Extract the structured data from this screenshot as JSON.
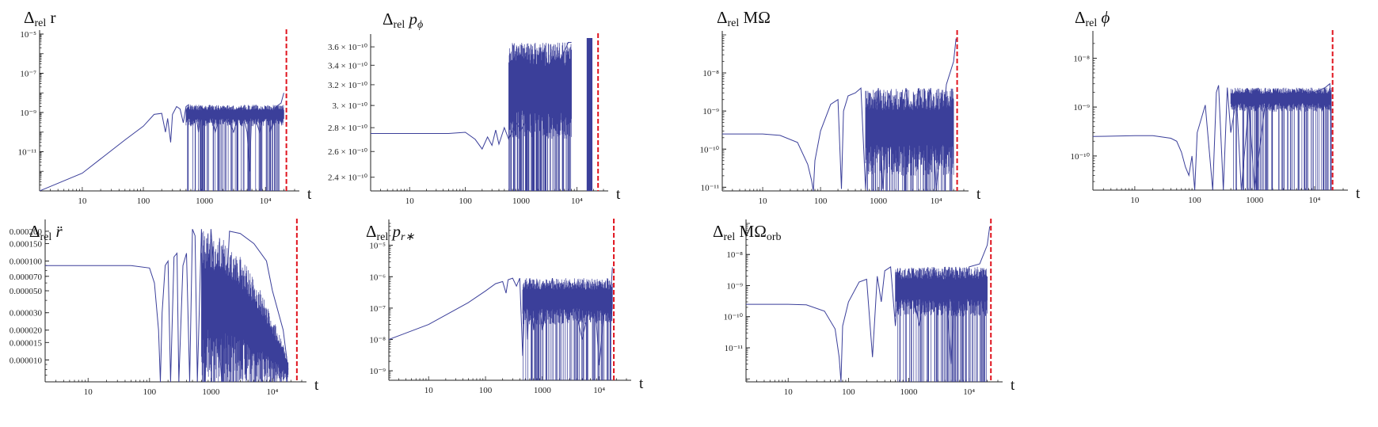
{
  "chart_data": [
    {
      "type": "line",
      "title": "Δrel r",
      "title_parts": {
        "delta": "Δ",
        "sub": "rel",
        "var": "r",
        "var_italic": false,
        "var_sub": ""
      },
      "xlabel": "t",
      "xscale": "log",
      "yscale": "log",
      "xlim": [
        2,
        30000
      ],
      "ylim": [
        1e-13,
        1e-05
      ],
      "xticks": [
        {
          "v": 10,
          "label": "10"
        },
        {
          "v": 100,
          "label": "100"
        },
        {
          "v": 1000,
          "label": "1000"
        },
        {
          "v": 10000,
          "label": "10⁴"
        }
      ],
      "yticks": [
        {
          "v": 1e-05,
          "label": "10⁻⁵"
        },
        {
          "v": 1e-07,
          "label": "10⁻⁷"
        },
        {
          "v": 1e-09,
          "label": "10⁻⁹"
        },
        {
          "v": 1e-11,
          "label": "10⁻¹¹"
        }
      ],
      "vline_t": 22000,
      "series": [
        {
          "color": "#3b3f9a",
          "x": [
            2,
            10,
            50,
            100,
            150,
            200,
            230,
            250,
            280,
            300,
            350,
            400,
            450,
            500,
            550,
            600,
            700,
            800,
            900,
            1000,
            1200,
            1500,
            2000,
            3000,
            4000,
            5000,
            5500,
            6000,
            8000,
            10000,
            12000,
            15000,
            18000,
            20000
          ],
          "y": [
            1e-13,
            8e-13,
            4e-11,
            2e-10,
            8e-10,
            9e-10,
            1e-10,
            5e-10,
            3e-11,
            8e-10,
            2e-09,
            1.5e-09,
            3e-10,
            2e-09,
            2.5e-09,
            2e-10,
            2e-09,
            1e-10,
            2e-09,
            3e-10,
            2e-09,
            1e-10,
            2e-09,
            1e-10,
            2e-09,
            1e-10,
            1e-12,
            2e-09,
            1e-10,
            2e-09,
            1e-10,
            2e-09,
            3e-09,
            1e-08
          ],
          "band": {
            "from": 500,
            "to": 20000,
            "lo": 2e-10,
            "hi": 2.5e-09
          }
        }
      ]
    },
    {
      "type": "line",
      "title": "Δrel pϕ",
      "title_parts": {
        "delta": "Δ",
        "sub": "rel",
        "var": "p",
        "var_italic": true,
        "var_sub": "ϕ"
      },
      "xlabel": "t",
      "xscale": "log",
      "yscale": "log",
      "xlim": [
        2,
        30000
      ],
      "ylim": [
        2.3e-10,
        3.7e-10
      ],
      "xticks": [
        {
          "v": 10,
          "label": "10"
        },
        {
          "v": 100,
          "label": "100"
        },
        {
          "v": 1000,
          "label": "1000"
        },
        {
          "v": 10000,
          "label": "10⁴"
        }
      ],
      "yticks": [
        {
          "v": 3.6e-10,
          "label": "3.6 × 10⁻¹⁰"
        },
        {
          "v": 3.4e-10,
          "label": "3.4 × 10⁻¹⁰"
        },
        {
          "v": 3.2e-10,
          "label": "3.2 × 10⁻¹⁰"
        },
        {
          "v": 3e-10,
          "label": "3. × 10⁻¹⁰"
        },
        {
          "v": 2.8e-10,
          "label": "2.8 × 10⁻¹⁰"
        },
        {
          "v": 2.6e-10,
          "label": "2.6 × 10⁻¹⁰"
        },
        {
          "v": 2.4e-10,
          "label": "2.4 × 10⁻¹⁰"
        }
      ],
      "vline_t": 24000,
      "series": [
        {
          "color": "#3b3f9a",
          "x": [
            2,
            50,
            100,
            150,
            200,
            250,
            300,
            350,
            400,
            500,
            600,
            800,
            1000,
            1500,
            2000,
            3000,
            4000,
            5000,
            6000,
            7000,
            8000
          ],
          "y": [
            2.75e-10,
            2.75e-10,
            2.76e-10,
            2.7e-10,
            2.62e-10,
            2.72e-10,
            2.65e-10,
            2.78e-10,
            2.66e-10,
            2.8e-10,
            2.7e-10,
            2.85e-10,
            2.78e-10,
            2.95e-10,
            3e-10,
            3.15e-10,
            3.3e-10,
            3.45e-10,
            3.55e-10,
            3.65e-10,
            3.65e-10
          ],
          "band": {
            "from": 600,
            "to": 8000,
            "lo": 2.7e-10,
            "hi": 3.65e-10
          },
          "block": {
            "from": 15000,
            "to": 19000
          }
        }
      ]
    },
    {
      "type": "line",
      "title": "Δrel MΩ",
      "title_parts": {
        "delta": "Δ",
        "sub": "rel",
        "var": "MΩ",
        "var_italic": false,
        "var_sub": ""
      },
      "xlabel": "t",
      "xscale": "log",
      "yscale": "log",
      "xlim": [
        2,
        30000
      ],
      "ylim": [
        8e-12,
        1e-07
      ],
      "xticks": [
        {
          "v": 10,
          "label": "10"
        },
        {
          "v": 100,
          "label": "100"
        },
        {
          "v": 1000,
          "label": "1000"
        },
        {
          "v": 10000,
          "label": "10⁴"
        }
      ],
      "yticks": [
        {
          "v": 1e-08,
          "label": "10⁻⁸"
        },
        {
          "v": 1e-09,
          "label": "10⁻⁹"
        },
        {
          "v": 1e-10,
          "label": "10⁻¹⁰"
        },
        {
          "v": 1e-11,
          "label": "10⁻¹¹"
        }
      ],
      "vline_t": 23000,
      "series": [
        {
          "color": "#3b3f9a",
          "x": [
            2,
            10,
            20,
            40,
            60,
            70,
            75,
            80,
            100,
            150,
            200,
            230,
            250,
            300,
            400,
            500,
            600,
            700,
            800,
            1000,
            1200,
            1500,
            2000,
            3000,
            4000,
            5000,
            6000,
            8000,
            10000,
            15000,
            20000,
            22000
          ],
          "y": [
            2.5e-10,
            2.5e-10,
            2.3e-10,
            1.5e-10,
            4e-11,
            1.5e-11,
            8e-12,
            5e-11,
            3e-10,
            1.5e-09,
            2e-09,
            9e-12,
            1e-09,
            2.5e-09,
            3e-09,
            4e-09,
            9e-12,
            3e-09,
            2e-10,
            4e-09,
            9e-12,
            3e-09,
            1e-10,
            4e-09,
            2e-10,
            4e-09,
            1e-10,
            4e-09,
            9e-12,
            5e-09,
            2e-08,
            8e-08
          ],
          "band": {
            "from": 600,
            "to": 20000,
            "lo": 2e-11,
            "hi": 4e-09
          }
        }
      ]
    },
    {
      "type": "line",
      "title": "Δrel ϕ",
      "title_parts": {
        "delta": "Δ",
        "sub": "rel",
        "var": "ϕ",
        "var_italic": true,
        "var_sub": ""
      },
      "xlabel": "t",
      "xscale": "log",
      "yscale": "log",
      "xlim": [
        2,
        30000
      ],
      "ylim": [
        2e-11,
        3e-08
      ],
      "xticks": [
        {
          "v": 10,
          "label": "10"
        },
        {
          "v": 100,
          "label": "100"
        },
        {
          "v": 1000,
          "label": "1000"
        },
        {
          "v": 10000,
          "label": "10⁴"
        }
      ],
      "yticks": [
        {
          "v": 1e-08,
          "label": "10⁻⁸"
        },
        {
          "v": 1e-09,
          "label": "10⁻⁹"
        },
        {
          "v": 1e-10,
          "label": "10⁻¹⁰"
        }
      ],
      "vline_t": 20000,
      "series": [
        {
          "color": "#3b3f9a",
          "x": [
            2,
            10,
            20,
            40,
            50,
            60,
            70,
            80,
            90,
            100,
            110,
            150,
            200,
            230,
            250,
            300,
            350,
            400,
            500,
            600,
            800,
            1000,
            1500,
            2000,
            3000,
            5000,
            8000,
            10000,
            15000,
            18000,
            19000
          ],
          "y": [
            2.5e-10,
            2.6e-10,
            2.6e-10,
            2.3e-10,
            2e-10,
            1.2e-10,
            6e-11,
            4e-11,
            1e-10,
            2e-11,
            3e-10,
            1.1e-09,
            2e-11,
            2e-09,
            2.8e-09,
            2e-11,
            2.5e-09,
            3e-10,
            1.5e-09,
            2e-11,
            1.2e-09,
            2e-11,
            1.2e-09,
            1.3e-09,
            1.5e-09,
            1.5e-09,
            1.6e-09,
            2e-09,
            2.5e-09,
            3e-09,
            2.5e-10
          ],
          "band": {
            "from": 400,
            "to": 19000,
            "lo": 8e-10,
            "hi": 2.5e-09
          }
        }
      ]
    },
    {
      "type": "line",
      "title": "Δrel r̈",
      "title_parts": {
        "delta": "Δ",
        "sub": "rel",
        "var": "r̈",
        "var_italic": true,
        "var_sub": ""
      },
      "xlabel": "t",
      "xscale": "log",
      "yscale": "log",
      "xlim": [
        2,
        30000
      ],
      "ylim": [
        6e-06,
        0.00024
      ],
      "xticks": [
        {
          "v": 10,
          "label": "10"
        },
        {
          "v": 100,
          "label": "100"
        },
        {
          "v": 1000,
          "label": "1000"
        },
        {
          "v": 10000,
          "label": "10⁴"
        }
      ],
      "yticks": [
        {
          "v": 0.0002,
          "label": "0.000200"
        },
        {
          "v": 0.00015,
          "label": "0.000150"
        },
        {
          "v": 0.0001,
          "label": "0.000100"
        },
        {
          "v": 7e-05,
          "label": "0.000070"
        },
        {
          "v": 5e-05,
          "label": "0.000050"
        },
        {
          "v": 3e-05,
          "label": "0.000030"
        },
        {
          "v": 2e-05,
          "label": "0.000020"
        },
        {
          "v": 1.5e-05,
          "label": "0.000015"
        },
        {
          "v": 1e-05,
          "label": "0.000010"
        }
      ],
      "vline_t": 25000,
      "series": [
        {
          "color": "#3b3f9a",
          "x": [
            2,
            50,
            100,
            120,
            140,
            150,
            160,
            180,
            200,
            220,
            250,
            280,
            300,
            350,
            400,
            450,
            500,
            550,
            600,
            700,
            800,
            1000,
            1500,
            2000,
            3000,
            5000,
            8000,
            10000,
            15000,
            18000
          ],
          "y": [
            9e-05,
            9e-05,
            8.5e-05,
            6e-05,
            2e-05,
            6e-06,
            3e-05,
            9e-05,
            0.0001,
            6e-06,
            0.00011,
            0.00012,
            6e-06,
            9e-05,
            0.00012,
            6e-06,
            0.00021,
            0.00018,
            6e-06,
            0.00021,
            6e-06,
            0.00021,
            6e-06,
            0.0002,
            0.00019,
            0.00015,
            0.0001,
            5e-05,
            2e-05,
            8e-06
          ],
          "band": {
            "from": 700,
            "to": 18000,
            "lo": 6e-06,
            "hi": 0.0002
          },
          "band_decay": true
        }
      ]
    },
    {
      "type": "line",
      "title": "Δrel pr*",
      "title_parts": {
        "delta": "Δ",
        "sub": "rel",
        "var": "p",
        "var_italic": true,
        "var_sub": "r∗"
      },
      "xlabel": "t",
      "xscale": "log",
      "yscale": "log",
      "xlim": [
        2,
        30000
      ],
      "ylim": [
        5e-10,
        5e-05
      ],
      "xticks": [
        {
          "v": 10,
          "label": "10"
        },
        {
          "v": 100,
          "label": "100"
        },
        {
          "v": 1000,
          "label": "1000"
        },
        {
          "v": 10000,
          "label": "10⁴"
        }
      ],
      "yticks": [
        {
          "v": 1e-05,
          "label": "10⁻⁵"
        },
        {
          "v": 1e-06,
          "label": "10⁻⁶"
        },
        {
          "v": 1e-07,
          "label": "10⁻⁷"
        },
        {
          "v": 1e-08,
          "label": "10⁻⁸"
        },
        {
          "v": 1e-09,
          "label": "10⁻⁹"
        }
      ],
      "vline_t": 18000,
      "series": [
        {
          "color": "#3b3f9a",
          "x": [
            2,
            10,
            50,
            100,
            150,
            200,
            230,
            250,
            300,
            350,
            400,
            450,
            500,
            550,
            600,
            700,
            800,
            1000,
            1500,
            2000,
            3000,
            5000,
            8000,
            10000,
            13000,
            15000,
            17000
          ],
          "y": [
            1e-08,
            3e-08,
            1.5e-07,
            3.5e-07,
            6e-07,
            7e-07,
            3e-07,
            8e-07,
            9e-07,
            5e-07,
            9e-07,
            3e-09,
            8e-07,
            1e-08,
            9e-07,
            2e-08,
            8e-07,
            2e-08,
            9e-07,
            5e-08,
            7e-07,
            1e-08,
            5e-07,
            1.5e-09,
            3e-07,
            5e-08,
            2e-06
          ],
          "band": {
            "from": 450,
            "to": 17000,
            "lo": 3e-08,
            "hi": 9e-07
          }
        }
      ]
    },
    {
      "type": "line",
      "title": "Δrel MΩorb",
      "title_parts": {
        "delta": "Δ",
        "sub": "rel",
        "var": "MΩ",
        "var_italic": false,
        "var_sub": "orb"
      },
      "xlabel": "t",
      "xscale": "log",
      "yscale": "log",
      "xlim": [
        2,
        30000
      ],
      "ylim": [
        8e-13,
        1e-07
      ],
      "xticks": [
        {
          "v": 10,
          "label": "10"
        },
        {
          "v": 100,
          "label": "100"
        },
        {
          "v": 1000,
          "label": "1000"
        },
        {
          "v": 10000,
          "label": "10⁴"
        }
      ],
      "yticks": [
        {
          "v": 1e-08,
          "label": "10⁻⁸"
        },
        {
          "v": 1e-09,
          "label": "10⁻⁹"
        },
        {
          "v": 1e-10,
          "label": "10⁻¹⁰"
        },
        {
          "v": 1e-11,
          "label": "10⁻¹¹"
        }
      ],
      "vline_t": 23000,
      "series": [
        {
          "color": "#3b3f9a",
          "x": [
            2,
            10,
            20,
            40,
            60,
            70,
            75,
            80,
            100,
            150,
            200,
            250,
            300,
            350,
            400,
            500,
            600,
            700,
            800,
            1000,
            1500,
            2000,
            3000,
            4000,
            5000,
            6000,
            8000,
            10000,
            15000,
            20000,
            22000
          ],
          "y": [
            2.5e-10,
            2.5e-10,
            2.4e-10,
            1.5e-10,
            4e-11,
            5e-12,
            8e-13,
            5e-11,
            3e-10,
            1.3e-09,
            1.6e-09,
            5e-12,
            2e-09,
            3e-10,
            3e-09,
            4e-09,
            5e-11,
            3e-09,
            4e-10,
            3.5e-09,
            5e-11,
            3.5e-09,
            2e-10,
            4e-09,
            3e-12,
            4e-09,
            1e-10,
            4e-09,
            5e-09,
            2e-08,
            8e-08
          ],
          "band": {
            "from": 600,
            "to": 20000,
            "lo": 1e-10,
            "hi": 4e-09
          }
        }
      ]
    }
  ]
}
